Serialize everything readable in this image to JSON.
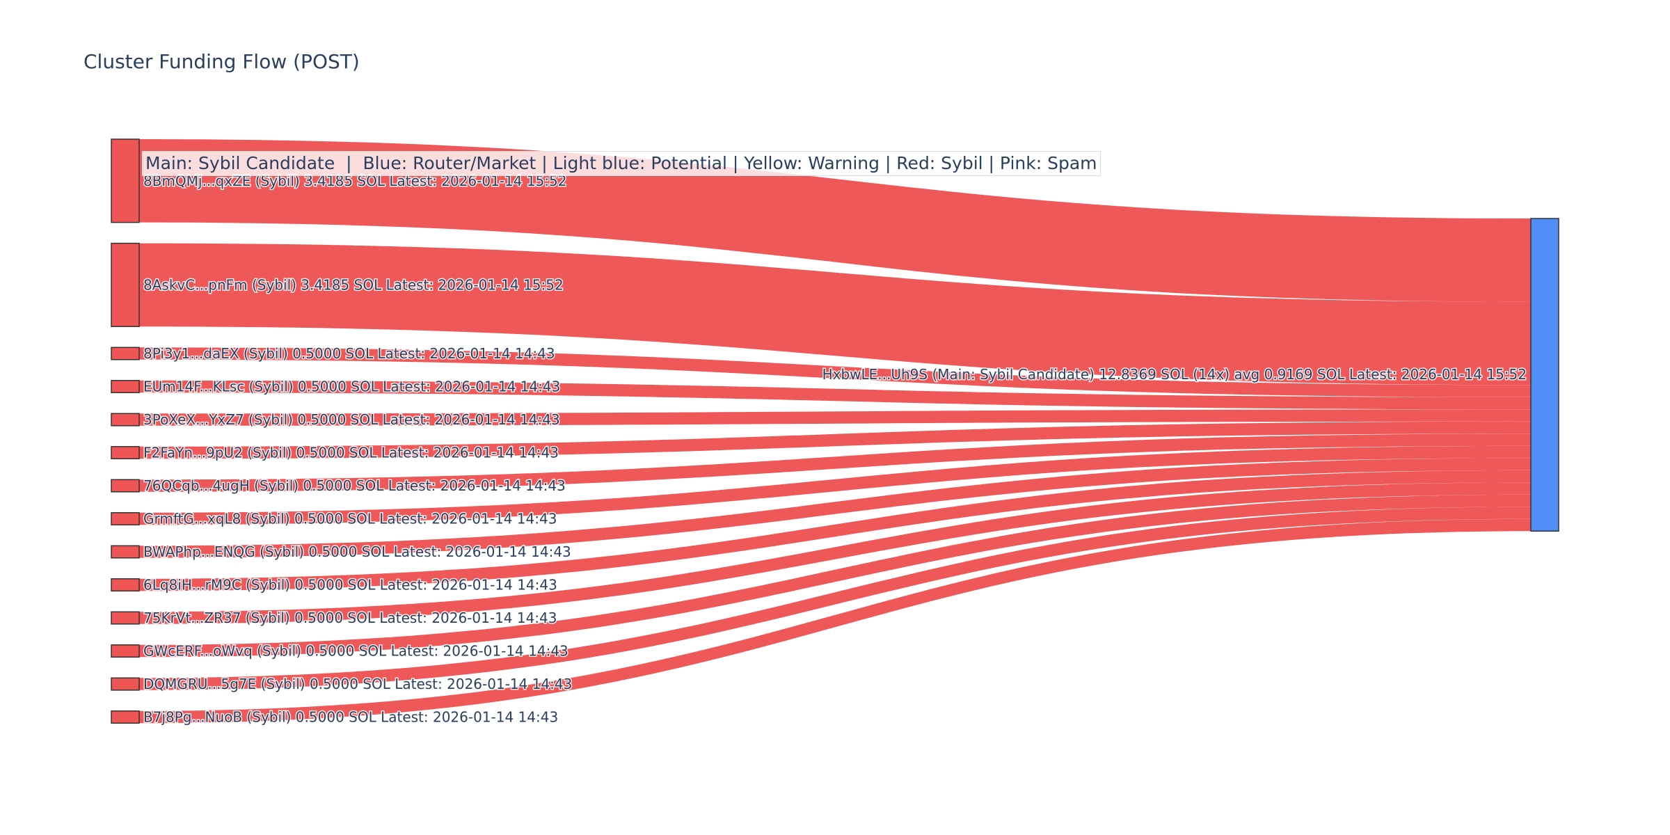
{
  "title": "Cluster Funding Flow (POST)",
  "legend_text": "Main: Sybil Candidate  |  Blue: Router/Market | Light blue: Potential | Yellow: Warning | Red: Sybil | Pink: Spam",
  "colors": {
    "sybil": "#ef5555",
    "main": "#4f8ef7",
    "link": "#ef5555",
    "node_border": "#333333"
  },
  "chart_data": {
    "type": "sankey",
    "unit": "SOL",
    "target": {
      "id": "HxbwLE...Uh9S",
      "label": "HxbwLE...Uh9S (Main: Sybil Candidate) 12.8369 SOL (14x) avg 0.9169 SOL Latest: 2026-01-14 15:52",
      "value": 12.8369,
      "category": "Main: Sybil Candidate"
    },
    "sources": [
      {
        "label": "8BmQMj...qxZE (Sybil) 3.4185 SOL Latest: 2026-01-14 15:52",
        "value": 3.4185,
        "category": "Sybil"
      },
      {
        "label": "8AskvC...pnFm (Sybil) 3.4185 SOL Latest: 2026-01-14 15:52",
        "value": 3.4185,
        "category": "Sybil"
      },
      {
        "label": "8Pi3y1...daEX (Sybil) 0.5000 SOL Latest: 2026-01-14 14:43",
        "value": 0.5,
        "category": "Sybil"
      },
      {
        "label": "EUm14F...KLsc (Sybil) 0.5000 SOL Latest: 2026-01-14 14:43",
        "value": 0.5,
        "category": "Sybil"
      },
      {
        "label": "3PoXeX...YxZ7 (Sybil) 0.5000 SOL Latest: 2026-01-14 14:43",
        "value": 0.5,
        "category": "Sybil"
      },
      {
        "label": "F2FaYn...9pU2 (Sybil) 0.5000 SOL Latest: 2026-01-14 14:43",
        "value": 0.5,
        "category": "Sybil"
      },
      {
        "label": "76QCqb...4ugH (Sybil) 0.5000 SOL Latest: 2026-01-14 14:43",
        "value": 0.5,
        "category": "Sybil"
      },
      {
        "label": "GrmftG...xqL8 (Sybil) 0.5000 SOL Latest: 2026-01-14 14:43",
        "value": 0.5,
        "category": "Sybil"
      },
      {
        "label": "BWAPhp...ENQG (Sybil) 0.5000 SOL Latest: 2026-01-14 14:43",
        "value": 0.5,
        "category": "Sybil"
      },
      {
        "label": "6Lq8iH...rM9C (Sybil) 0.5000 SOL Latest: 2026-01-14 14:43",
        "value": 0.5,
        "category": "Sybil"
      },
      {
        "label": "75KrVt...ZR37 (Sybil) 0.5000 SOL Latest: 2026-01-14 14:43",
        "value": 0.5,
        "category": "Sybil"
      },
      {
        "label": "GWcERF...oWvq (Sybil) 0.5000 SOL Latest: 2026-01-14 14:43",
        "value": 0.5,
        "category": "Sybil"
      },
      {
        "label": "DQMGRU...5g7E (Sybil) 0.5000 SOL Latest: 2026-01-14 14:43",
        "value": 0.5,
        "category": "Sybil"
      },
      {
        "label": "B7j8Pg...NuoB (Sybil) 0.5000 SOL Latest: 2026-01-14 14:43",
        "value": 0.5,
        "category": "Sybil"
      }
    ]
  }
}
